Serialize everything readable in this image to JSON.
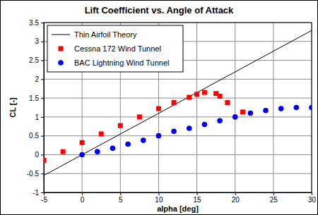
{
  "chart_data": {
    "type": "line",
    "title": "Lift Coefficient vs. Angle of Attack",
    "x_label": "alpha [deg]",
    "y_label": "CL [-]",
    "xlim": [
      -5,
      30
    ],
    "xticks": [
      -5,
      0,
      5,
      10,
      15,
      20,
      25,
      30
    ],
    "ylim": [
      -1,
      3.5
    ],
    "yticks": [
      -1,
      -0.5,
      0,
      0.5,
      1,
      1.5,
      2,
      2.5,
      3,
      3.5
    ],
    "grid": true,
    "legend": "upper left",
    "series": [
      {
        "name": "Thin Airfoil Theory",
        "type": "line",
        "color": "#000000",
        "line_style": "solid",
        "x": [
          -5,
          30
        ],
        "values": [
          -0.55,
          3.29
        ]
      },
      {
        "name": "Cessna 172 Wind Tunnel",
        "type": "scatter",
        "color": "#ff0000",
        "marker": "square",
        "x": [
          -5,
          -2.5,
          0,
          2.5,
          5,
          7.5,
          10,
          12,
          14,
          15,
          16,
          17.5,
          18,
          19,
          21
        ],
        "values": [
          -0.15,
          0.08,
          0.32,
          0.55,
          0.77,
          1.0,
          1.22,
          1.38,
          1.52,
          1.6,
          1.65,
          1.62,
          1.55,
          1.38,
          1.13
        ]
      },
      {
        "name": "BAC Lightning Wind Tunnel",
        "type": "scatter",
        "color": "#0000ff",
        "marker": "circle",
        "x": [
          0,
          2,
          4,
          6,
          8,
          10,
          12,
          14,
          16,
          18,
          20,
          22,
          24,
          26,
          28,
          30
        ],
        "values": [
          0,
          0.08,
          0.17,
          0.28,
          0.38,
          0.5,
          0.62,
          0.7,
          0.8,
          0.9,
          1.0,
          1.1,
          1.17,
          1.22,
          1.25,
          1.25
        ]
      }
    ]
  }
}
